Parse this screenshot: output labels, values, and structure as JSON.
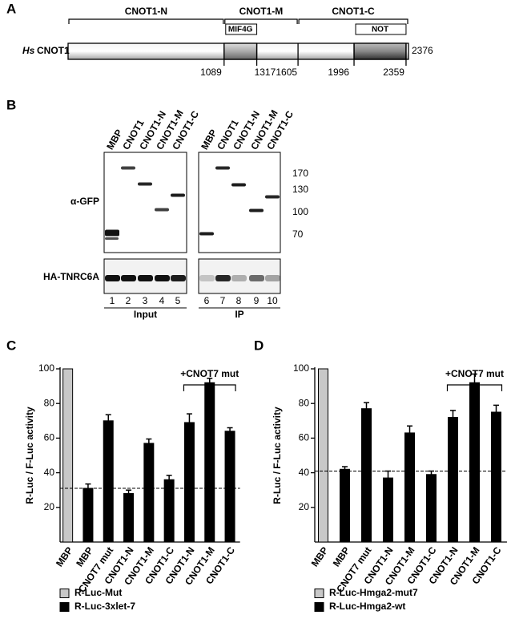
{
  "panel_a": {
    "label": "A",
    "domains": [
      "CNOT1-N",
      "CNOT1-M",
      "CNOT1-C"
    ],
    "motifs": [
      "MIF4G",
      "NOT"
    ],
    "species": "Hs",
    "protein": "CNOT1",
    "length": 2376,
    "positions": [
      1089,
      1317,
      1605,
      1996,
      2359
    ]
  },
  "panel_b": {
    "label": "B",
    "lanes": [
      "MBP",
      "CNOT1",
      "CNOT1-N",
      "CNOT1-M",
      "CNOT1-C",
      "MBP",
      "CNOT1",
      "CNOT1-N",
      "CNOT1-M",
      "CNOT1-C"
    ],
    "lane_numbers": [
      1,
      2,
      3,
      4,
      5,
      6,
      7,
      8,
      9,
      10
    ],
    "antibodies": [
      "α-GFP",
      "HA-TNRC6A"
    ],
    "markers": [
      170,
      130,
      100,
      70
    ],
    "groups": [
      "Input",
      "IP"
    ]
  },
  "chart_data": [
    {
      "type": "bar",
      "label": "C",
      "y_label": "R-Luc / F-Luc activity",
      "categories": [
        "MBP",
        "MBP",
        "CNOT7 mut",
        "CNOT1-N",
        "CNOT1-M",
        "CNOT1-C",
        "CNOT1-N",
        "CNOT1-M",
        "CNOT1-C"
      ],
      "bracket_label": "+CNOT7 mut",
      "reference_line": 31,
      "ylim": [
        0,
        100
      ],
      "yticks": [
        20,
        40,
        60,
        80,
        100
      ],
      "series": [
        {
          "name": "R-Luc-Mut",
          "color": "#c8c8c8",
          "values": [
            100,
            null,
            null,
            null,
            null,
            null,
            null,
            null,
            null
          ],
          "errors": [
            null,
            null,
            null,
            null,
            null,
            null,
            null,
            null,
            null
          ]
        },
        {
          "name": "R-Luc-3xlet-7",
          "color": "#000000",
          "values": [
            null,
            31,
            70,
            28,
            57,
            36,
            69,
            92,
            64
          ],
          "errors": [
            null,
            2.5,
            3.5,
            2,
            2.5,
            2.5,
            5,
            2.5,
            2
          ]
        }
      ]
    },
    {
      "type": "bar",
      "label": "D",
      "y_label": "R-Luc / F-Luc activity",
      "categories": [
        "MBP",
        "MBP",
        "CNOT7 mut",
        "CNOT1-N",
        "CNOT1-M",
        "CNOT1-C",
        "CNOT1-N",
        "CNOT1-M",
        "CNOT1-C"
      ],
      "bracket_label": "+CNOT7 mut",
      "reference_line": 41,
      "ylim": [
        0,
        100
      ],
      "yticks": [
        20,
        40,
        60,
        80,
        100
      ],
      "series": [
        {
          "name": "R-Luc-Hmga2-mut7",
          "color": "#c8c8c8",
          "values": [
            100,
            null,
            null,
            null,
            null,
            null,
            null,
            null,
            null
          ],
          "errors": [
            null,
            null,
            null,
            null,
            null,
            null,
            null,
            null,
            null
          ]
        },
        {
          "name": "R-Luc-Hmga2-wt",
          "color": "#000000",
          "values": [
            null,
            42,
            77,
            37,
            63,
            39,
            72,
            92,
            75
          ],
          "errors": [
            null,
            1.5,
            3.5,
            4,
            4,
            2,
            4,
            5,
            4
          ]
        }
      ]
    }
  ]
}
